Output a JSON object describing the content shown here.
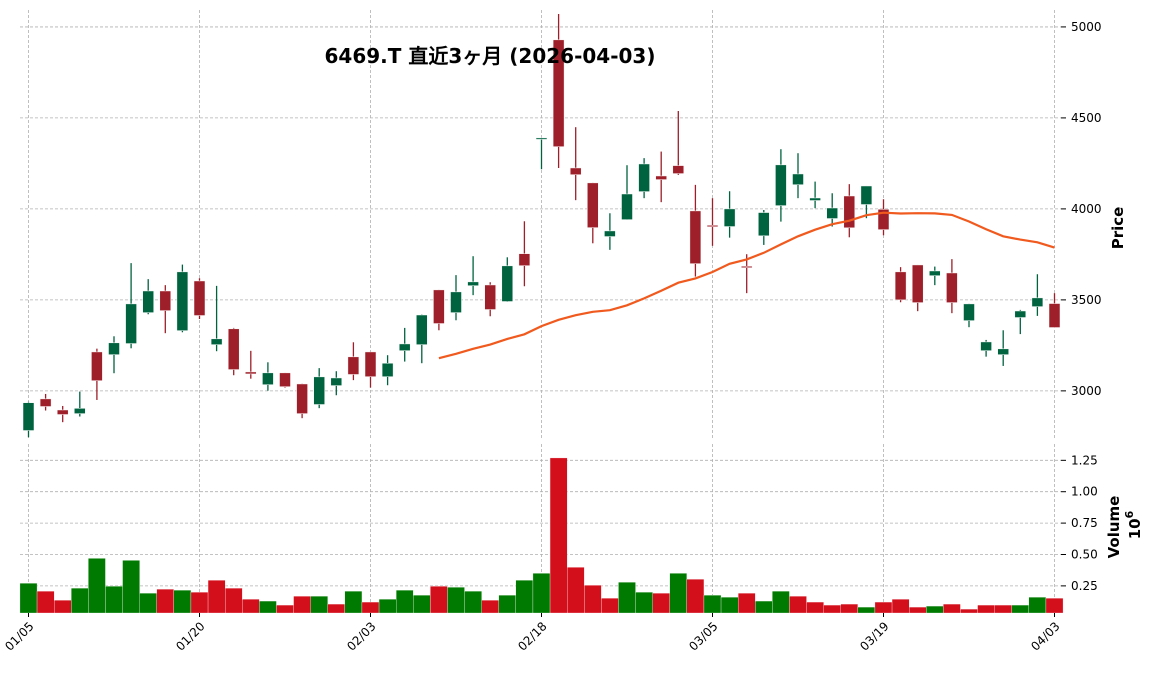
{
  "chart_data": {
    "type": "candlestick",
    "title": "6469.T 直近3ヶ月 (2026-04-03)",
    "dates": [
      "01/05",
      "01/06",
      "01/07",
      "01/08",
      "01/09",
      "01/13",
      "01/14",
      "01/15",
      "01/16",
      "01/19",
      "01/20",
      "01/21",
      "01/22",
      "01/23",
      "01/26",
      "01/27",
      "01/28",
      "01/29",
      "01/30",
      "02/02",
      "02/03",
      "02/04",
      "02/05",
      "02/06",
      "02/09",
      "02/10",
      "02/12",
      "02/13",
      "02/16",
      "02/17",
      "02/18",
      "02/19",
      "02/20",
      "02/24",
      "02/25",
      "02/26",
      "02/27",
      "03/02",
      "03/03",
      "03/04",
      "03/05",
      "03/06",
      "03/09",
      "03/10",
      "03/11",
      "03/12",
      "03/13",
      "03/16",
      "03/17",
      "03/18",
      "03/19",
      "03/23",
      "03/24",
      "03/25",
      "03/26",
      "03/27",
      "03/30",
      "03/31",
      "04/01",
      "04/02",
      "04/03"
    ],
    "open": [
      2782,
      2956,
      2895,
      2875,
      3214,
      3199,
      3260,
      3430,
      3549,
      3331,
      3604,
      3254,
      3341,
      3104,
      3034,
      3099,
      3038,
      2925,
      3029,
      3187,
      3214,
      3078,
      3221,
      3254,
      3555,
      3430,
      3578,
      3582,
      3491,
      3754,
      4385,
      4929,
      4225,
      4143,
      3848,
      3941,
      4095,
      4181,
      4238,
      3989,
      3910,
      3903,
      3685,
      3852,
      4018,
      4133,
      4046,
      3947,
      4071,
      4024,
      3998,
      3654,
      3692,
      3633,
      3648,
      3386,
      3221,
      3199,
      3403,
      3463,
      3480
    ],
    "high": [
      2940,
      2983,
      2917,
      2996,
      3232,
      3300,
      3702,
      3614,
      3581,
      3694,
      3619,
      3577,
      3346,
      3220,
      3157,
      3100,
      3040,
      3125,
      3108,
      3267,
      3216,
      3196,
      3346,
      3420,
      3556,
      3636,
      3740,
      3597,
      3734,
      3932,
      4390,
      5071,
      4449,
      4145,
      3976,
      4240,
      4279,
      4315,
      4538,
      4132,
      4059,
      4097,
      3751,
      3994,
      4328,
      4306,
      4150,
      4086,
      4136,
      4126,
      4053,
      3680,
      3692,
      3683,
      3724,
      3480,
      3280,
      3333,
      3445,
      3641,
      3537
    ],
    "low": [
      2745,
      2892,
      2828,
      2859,
      2950,
      3097,
      3234,
      3421,
      3317,
      3322,
      3395,
      3218,
      3086,
      3067,
      3001,
      3018,
      2850,
      2905,
      2976,
      3059,
      3018,
      3031,
      3161,
      3152,
      3333,
      3388,
      3526,
      3410,
      3489,
      3575,
      4218,
      4225,
      4048,
      3811,
      3775,
      3940,
      4059,
      4037,
      4187,
      3628,
      3797,
      3842,
      3537,
      3802,
      3930,
      4059,
      4004,
      3903,
      3844,
      3949,
      3855,
      3487,
      3438,
      3581,
      3427,
      3350,
      3188,
      3137,
      3312,
      3412,
      3348
    ],
    "close": [
      2935,
      2914,
      2870,
      2904,
      3056,
      3264,
      3478,
      3549,
      3441,
      3654,
      3414,
      3286,
      3117,
      3093,
      3099,
      3023,
      2875,
      3077,
      3071,
      3090,
      3078,
      3152,
      3258,
      3417,
      3370,
      3544,
      3599,
      3447,
      3687,
      3688,
      4390,
      4342,
      4188,
      3897,
      3879,
      4082,
      4247,
      4161,
      4194,
      3699,
      3905,
      4000,
      3680,
      3980,
      4242,
      4192,
      4060,
      4005,
      3896,
      4126,
      3886,
      3500,
      3485,
      3659,
      3485,
      3478,
      3269,
      3231,
      3439,
      3511,
      3348
    ],
    "volume": [
      0.271,
      0.208,
      0.136,
      0.232,
      0.469,
      0.247,
      0.453,
      0.192,
      0.224,
      0.216,
      0.2,
      0.295,
      0.232,
      0.144,
      0.129,
      0.097,
      0.168,
      0.168,
      0.105,
      0.208,
      0.121,
      0.144,
      0.216,
      0.176,
      0.247,
      0.239,
      0.208,
      0.136,
      0.176,
      0.295,
      0.35,
      1.269,
      0.398,
      0.255,
      0.152,
      0.279,
      0.2,
      0.192,
      0.35,
      0.303,
      0.176,
      0.16,
      0.192,
      0.129,
      0.208,
      0.168,
      0.121,
      0.097,
      0.105,
      0.081,
      0.121,
      0.144,
      0.081,
      0.089,
      0.105,
      0.065,
      0.097,
      0.097,
      0.097,
      0.16,
      0.152
    ],
    "mav": 25,
    "x_tick_labels": [
      "01/05",
      "01/20",
      "02/03",
      "02/18",
      "03/05",
      "03/19",
      "04/03"
    ],
    "price_ticks": [
      3000,
      3500,
      4000,
      4500,
      5000
    ],
    "price_ylim": [
      2730,
      5093
    ],
    "price_label": "Price",
    "volume_ticks": [
      "0.25",
      "0.50",
      "0.75",
      "1.00",
      "1.25"
    ],
    "volume_ylim": [
      0.034,
      1.38
    ],
    "volume_label": "Volume",
    "volume_offset": "10",
    "volume_offset_exp": "6",
    "grid": true,
    "colors": {
      "up": "#006340",
      "down": "#9e1f29",
      "vol_up": "#007a00",
      "vol_down": "#d40f1c",
      "mav": "#f05a1e",
      "grid": "#b0b0b0"
    }
  }
}
